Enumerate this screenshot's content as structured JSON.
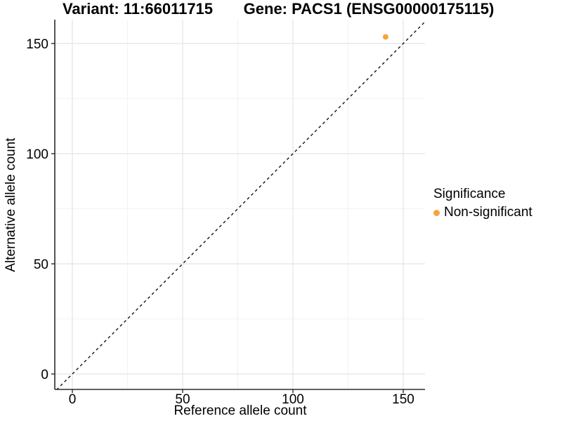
{
  "chart_data": {
    "type": "scatter",
    "titles": [
      "Variant: 11:66011715",
      "Gene: PACS1 (ENSG00000175115)"
    ],
    "xlabel": "Reference allele count",
    "ylabel": "Alternative allele count",
    "xlim": [
      -8,
      160
    ],
    "ylim": [
      -8,
      160
    ],
    "xticks": [
      0,
      50,
      100,
      150
    ],
    "yticks": [
      0,
      50,
      100,
      150
    ],
    "minor_ticks": [
      25,
      75,
      125
    ],
    "grid": "on",
    "identity_line": {
      "equation": "y = x",
      "style": "dashed",
      "color": "#000000"
    },
    "series": [
      {
        "name": "Non-significant",
        "color": "#F9A43B",
        "points": [
          {
            "x": 142,
            "y": 153
          }
        ]
      }
    ],
    "legend": {
      "position": "right",
      "title": "Significance",
      "entries": [
        {
          "label": "Non-significant",
          "color": "#F9A43B"
        }
      ]
    },
    "colors": {
      "point": "#F9A43B",
      "grid_major": "#E4E4E4",
      "grid_minor": "#F2F2F2",
      "axis_line": "#2b2b2b",
      "text": "#000000"
    }
  }
}
